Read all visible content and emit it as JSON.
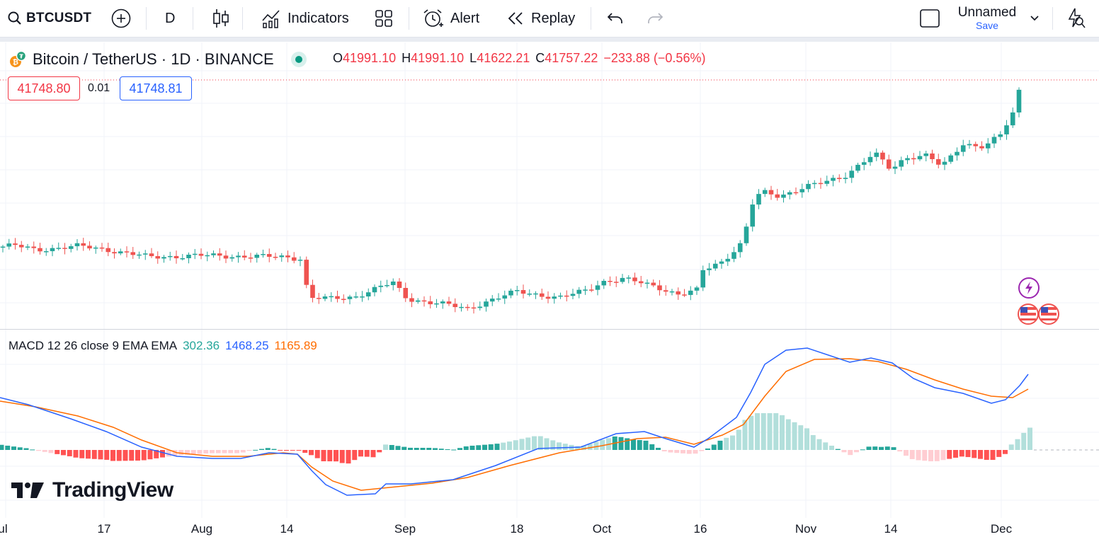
{
  "toolbar": {
    "symbol": "BTCUSDT",
    "interval": "D",
    "indicators_label": "Indicators",
    "alert_label": "Alert",
    "replay_label": "Replay",
    "layout_name": "Unnamed",
    "save_label": "Save",
    "icons": [
      "search-icon",
      "add-symbol-icon",
      "candles-icon",
      "indicators-icon",
      "templates-icon",
      "alert-icon",
      "replay-icon",
      "undo-icon",
      "redo-icon",
      "layout-icon",
      "chevron-down-icon",
      "quick-search-icon"
    ]
  },
  "legend": {
    "title": "Bitcoin / TetherUS · 1D · BINANCE",
    "open_key": "O",
    "open": "41991.10",
    "high_key": "H",
    "high": "41991.10",
    "low_key": "L",
    "low": "41622.21",
    "close_key": "C",
    "close": "41757.22",
    "change": "−233.88 (−0.56%)",
    "bid": "41748.80",
    "spread": "0.01",
    "ask": "41748.81"
  },
  "macd": {
    "label": "MACD 12 26 close 9 EMA EMA",
    "hist_value": "302.36",
    "macd_value": "1468.25",
    "signal_value": "1165.89"
  },
  "brand": "TradingView",
  "time_axis": [
    "ul",
    "17",
    "Aug",
    "14",
    "Sep",
    "18",
    "Oct",
    "16",
    "Nov",
    "14",
    "Dec"
  ],
  "colors": {
    "up": "#26a69a",
    "down": "#ef5350",
    "macd": "#2962ff",
    "signal": "#ff6d00",
    "hist_up_strong": "#26a69a",
    "hist_up_weak": "#b2dfdb",
    "hist_down_strong": "#ff5252",
    "hist_down_weak": "#ffcdd2"
  },
  "chart_data": [
    {
      "type": "candlestick",
      "title": "Bitcoin / TetherUS · 1D · BINANCE",
      "x": "daily, mid-Jul to early Dec",
      "x_ticks": [
        "ul",
        "17",
        "Aug",
        "14",
        "Sep",
        "18",
        "Oct",
        "16",
        "Nov",
        "14",
        "Dec"
      ],
      "approx_close_path": [
        {
          "date": "Jul",
          "close": 30200
        },
        {
          "date": "Jul 17",
          "close": 30100
        },
        {
          "date": "Aug 1",
          "close": 29600
        },
        {
          "date": "Aug 14",
          "close": 29400
        },
        {
          "date": "Aug 17",
          "close": 26600
        },
        {
          "date": "Aug 29",
          "close": 27700
        },
        {
          "date": "Sep 11",
          "close": 25800
        },
        {
          "date": "Sep 18",
          "close": 26800
        },
        {
          "date": "Oct 1",
          "close": 27900
        },
        {
          "date": "Oct 12",
          "close": 26800
        },
        {
          "date": "Oct 16",
          "close": 28500
        },
        {
          "date": "Oct 23",
          "close": 33000
        },
        {
          "date": "Nov 1",
          "close": 35400
        },
        {
          "date": "Nov 9",
          "close": 36700
        },
        {
          "date": "Nov 14",
          "close": 35500
        },
        {
          "date": "Dec 1",
          "close": 38700
        },
        {
          "date": "Dec 4",
          "close": 41757.22
        }
      ],
      "last": {
        "open": 41991.1,
        "high": 41991.1,
        "low": 41622.21,
        "close": 41757.22
      }
    },
    {
      "type": "line",
      "title": "MACD 12 26 close 9 EMA EMA",
      "series": [
        {
          "name": "Histogram",
          "last": 302.36
        },
        {
          "name": "MACD",
          "last": 1468.25
        },
        {
          "name": "Signal",
          "last": 1165.89
        }
      ]
    }
  ]
}
